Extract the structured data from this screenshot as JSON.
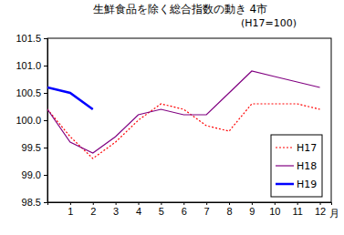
{
  "chart_data": {
    "type": "line",
    "title": "生鮮食品を除く総合指数の動き 4市",
    "subtitle": "(H17=100)",
    "xlabel": "月",
    "x": [
      0,
      1,
      2,
      3,
      4,
      5,
      6,
      7,
      8,
      9,
      10,
      11,
      12
    ],
    "xlim": [
      0,
      12.5
    ],
    "xticks": [
      1,
      2,
      3,
      4,
      5,
      6,
      7,
      8,
      9,
      10,
      11,
      12
    ],
    "ylim": [
      98.5,
      101.5
    ],
    "yticks": [
      98.5,
      {
        "value": 99,
        "label": "99.0"
      },
      99.5,
      {
        "value": 100,
        "label": "100.0"
      },
      100.5,
      {
        "value": 101,
        "label": "101.0"
      },
      101.5
    ],
    "grid": false,
    "legend": "lower right",
    "series": [
      {
        "name": "H17",
        "color": "#ff0000",
        "line_style": "dotted",
        "values": [
          100.2,
          99.7,
          99.3,
          99.6,
          100.0,
          100.3,
          100.2,
          99.9,
          99.8,
          100.3,
          100.3,
          100.3,
          100.2
        ]
      },
      {
        "name": "H18",
        "color": "#800080",
        "line_style": "solid",
        "values": [
          100.2,
          99.6,
          99.4,
          99.7,
          100.1,
          100.2,
          100.1,
          100.1,
          100.5,
          100.9,
          100.8,
          100.7,
          100.6
        ]
      },
      {
        "name": "H19",
        "color": "#0000ff",
        "line_style": "solid",
        "values": [
          100.6,
          100.5,
          100.2,
          null,
          null,
          null,
          null,
          null,
          null,
          null,
          null,
          null,
          null
        ]
      }
    ]
  }
}
